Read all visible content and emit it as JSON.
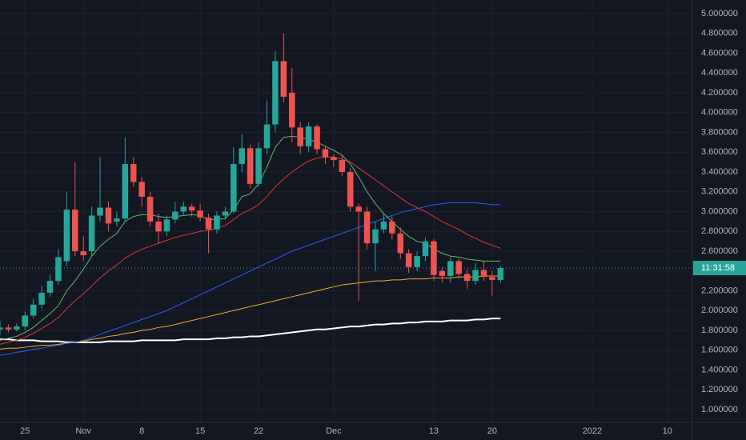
{
  "chart_data": {
    "type": "candlestick",
    "x": [
      "Oct 22",
      "Oct 23",
      "Oct 24",
      "Oct 25",
      "Oct 26",
      "Oct 27",
      "Oct 28",
      "Oct 29",
      "Oct 30",
      "Oct 31",
      "Nov 1",
      "Nov 2",
      "Nov 3",
      "Nov 4",
      "Nov 5",
      "Nov 6",
      "Nov 7",
      "Nov 8",
      "Nov 9",
      "Nov 10",
      "Nov 11",
      "Nov 12",
      "Nov 13",
      "Nov 14",
      "Nov 15",
      "Nov 16",
      "Nov 17",
      "Nov 18",
      "Nov 19",
      "Nov 20",
      "Nov 21",
      "Nov 22",
      "Nov 23",
      "Nov 24",
      "Nov 25",
      "Nov 26",
      "Nov 27",
      "Nov 28",
      "Nov 29",
      "Nov 30",
      "Dec 1",
      "Dec 2",
      "Dec 3",
      "Dec 4",
      "Dec 5",
      "Dec 6",
      "Dec 7",
      "Dec 8",
      "Dec 9",
      "Dec 10",
      "Dec 11",
      "Dec 12",
      "Dec 13",
      "Dec 14",
      "Dec 15",
      "Dec 16",
      "Dec 17",
      "Dec 18",
      "Dec 19",
      "Dec 20",
      "Dec 21"
    ],
    "open": [
      1.81,
      1.83,
      1.81,
      1.84,
      1.95,
      2.06,
      2.18,
      2.3,
      2.5,
      3.02,
      2.6,
      2.6,
      2.96,
      3.04,
      2.9,
      2.93,
      3.48,
      3.3,
      3.15,
      2.9,
      2.8,
      2.92,
      3.0,
      3.05,
      3.01,
      2.94,
      2.82,
      2.96,
      3.0,
      3.48,
      3.64,
      3.28,
      3.64,
      3.88,
      4.52,
      4.2,
      3.85,
      3.66,
      3.86,
      3.63,
      3.55,
      3.52,
      3.4,
      3.05,
      3.0,
      2.68,
      2.82,
      2.9,
      2.78,
      2.58,
      2.44,
      2.55,
      2.7,
      2.4,
      2.35,
      2.5,
      2.37,
      2.3,
      2.41,
      2.34,
      2.31
    ],
    "high": [
      1.9,
      1.86,
      1.87,
      1.99,
      2.12,
      2.25,
      2.36,
      2.62,
      3.2,
      3.5,
      2.75,
      3.05,
      3.55,
      3.1,
      3.0,
      3.75,
      3.55,
      3.35,
      3.2,
      2.98,
      2.96,
      3.1,
      3.1,
      3.08,
      3.08,
      2.98,
      3.0,
      3.05,
      3.65,
      3.78,
      3.68,
      3.7,
      4.12,
      4.62,
      4.8,
      4.45,
      3.9,
      3.9,
      3.88,
      3.66,
      3.58,
      3.56,
      3.44,
      3.08,
      3.05,
      2.9,
      2.98,
      2.95,
      2.84,
      2.62,
      2.6,
      2.74,
      2.72,
      2.44,
      2.54,
      2.52,
      2.42,
      2.48,
      2.5,
      2.4,
      2.45
    ],
    "low": [
      1.75,
      1.78,
      1.79,
      1.8,
      1.92,
      2.02,
      2.14,
      2.26,
      2.45,
      2.55,
      2.5,
      2.55,
      2.9,
      2.8,
      2.85,
      2.9,
      3.25,
      3.05,
      2.85,
      2.68,
      2.75,
      2.88,
      2.96,
      2.95,
      2.9,
      2.58,
      2.78,
      2.92,
      2.98,
      3.4,
      3.24,
      3.25,
      3.58,
      3.8,
      4.1,
      3.7,
      3.58,
      3.6,
      3.58,
      3.48,
      3.45,
      3.36,
      3.0,
      2.1,
      2.62,
      2.4,
      2.78,
      2.72,
      2.52,
      2.38,
      2.4,
      2.5,
      2.3,
      2.28,
      2.28,
      2.32,
      2.22,
      2.26,
      2.3,
      2.15,
      2.28
    ],
    "close": [
      1.83,
      1.81,
      1.84,
      1.95,
      2.06,
      2.18,
      2.3,
      2.54,
      3.02,
      2.6,
      2.56,
      2.96,
      3.04,
      2.88,
      2.93,
      3.48,
      3.3,
      3.15,
      2.9,
      2.8,
      2.92,
      3.0,
      3.05,
      3.01,
      2.94,
      2.82,
      2.96,
      3.0,
      3.48,
      3.64,
      3.28,
      3.64,
      3.88,
      4.52,
      4.16,
      3.85,
      3.66,
      3.86,
      3.63,
      3.55,
      3.52,
      3.4,
      3.05,
      3.0,
      2.68,
      2.82,
      2.9,
      2.78,
      2.58,
      2.44,
      2.55,
      2.7,
      2.36,
      2.35,
      2.5,
      2.37,
      2.3,
      2.41,
      2.34,
      2.31,
      2.43
    ],
    "up_color": "#26a69a",
    "down_color": "#ef5350",
    "series": [
      {
        "color": "#ffffff",
        "width": 2,
        "values": [
          1.71,
          1.71,
          1.7,
          1.7,
          1.7,
          1.69,
          1.69,
          1.69,
          1.68,
          1.68,
          1.68,
          1.68,
          1.68,
          1.69,
          1.69,
          1.69,
          1.69,
          1.7,
          1.7,
          1.7,
          1.7,
          1.7,
          1.71,
          1.71,
          1.71,
          1.71,
          1.72,
          1.72,
          1.73,
          1.73,
          1.74,
          1.74,
          1.75,
          1.76,
          1.77,
          1.78,
          1.79,
          1.8,
          1.81,
          1.81,
          1.82,
          1.83,
          1.84,
          1.84,
          1.85,
          1.86,
          1.86,
          1.87,
          1.87,
          1.88,
          1.88,
          1.89,
          1.89,
          1.89,
          1.9,
          1.9,
          1.9,
          1.91,
          1.91,
          1.92,
          1.92
        ]
      },
      {
        "color": "#f0a830",
        "width": 1,
        "values": [
          1.61,
          1.62,
          1.62,
          1.63,
          1.64,
          1.65,
          1.65,
          1.66,
          1.67,
          1.68,
          1.69,
          1.71,
          1.72,
          1.74,
          1.75,
          1.77,
          1.78,
          1.8,
          1.81,
          1.83,
          1.84,
          1.86,
          1.88,
          1.9,
          1.92,
          1.94,
          1.96,
          1.98,
          2.0,
          2.02,
          2.04,
          2.06,
          2.08,
          2.1,
          2.12,
          2.14,
          2.16,
          2.18,
          2.2,
          2.22,
          2.24,
          2.26,
          2.27,
          2.28,
          2.29,
          2.3,
          2.3,
          2.31,
          2.31,
          2.32,
          2.32,
          2.32,
          2.33,
          2.33,
          2.33,
          2.34,
          2.34,
          2.34,
          2.35,
          2.35,
          2.35
        ]
      },
      {
        "color": "#2962ff",
        "width": 1,
        "values": [
          1.55,
          1.56,
          1.58,
          1.59,
          1.61,
          1.62,
          1.64,
          1.65,
          1.67,
          1.68,
          1.7,
          1.73,
          1.76,
          1.79,
          1.82,
          1.85,
          1.88,
          1.91,
          1.94,
          1.97,
          2.0,
          2.04,
          2.08,
          2.12,
          2.16,
          2.2,
          2.24,
          2.28,
          2.32,
          2.36,
          2.4,
          2.44,
          2.48,
          2.52,
          2.56,
          2.6,
          2.63,
          2.66,
          2.69,
          2.72,
          2.75,
          2.78,
          2.81,
          2.84,
          2.87,
          2.9,
          2.93,
          2.96,
          2.99,
          3.01,
          3.03,
          3.05,
          3.07,
          3.08,
          3.09,
          3.09,
          3.09,
          3.09,
          3.08,
          3.07,
          3.07
        ]
      },
      {
        "color": "#e53935",
        "width": 1,
        "values": [
          1.66,
          1.68,
          1.7,
          1.73,
          1.77,
          1.82,
          1.87,
          1.93,
          2.02,
          2.1,
          2.17,
          2.25,
          2.33,
          2.4,
          2.46,
          2.53,
          2.58,
          2.62,
          2.65,
          2.68,
          2.71,
          2.74,
          2.76,
          2.78,
          2.8,
          2.81,
          2.83,
          2.86,
          2.92,
          2.98,
          3.02,
          3.07,
          3.15,
          3.25,
          3.33,
          3.4,
          3.46,
          3.51,
          3.54,
          3.55,
          3.55,
          3.53,
          3.5,
          3.44,
          3.38,
          3.32,
          3.26,
          3.2,
          3.14,
          3.08,
          3.04,
          3.0,
          2.95,
          2.9,
          2.86,
          2.82,
          2.77,
          2.73,
          2.69,
          2.66,
          2.63
        ]
      },
      {
        "color": "#66bb6a",
        "width": 1,
        "values": [
          1.7,
          1.72,
          1.74,
          1.78,
          1.83,
          1.9,
          1.97,
          2.05,
          2.2,
          2.3,
          2.42,
          2.55,
          2.65,
          2.72,
          2.78,
          2.9,
          2.95,
          2.97,
          2.97,
          2.95,
          2.94,
          2.95,
          2.96,
          2.97,
          2.96,
          2.92,
          2.92,
          2.93,
          3.02,
          3.15,
          3.18,
          3.28,
          3.45,
          3.65,
          3.75,
          3.76,
          3.75,
          3.73,
          3.7,
          3.66,
          3.62,
          3.57,
          3.48,
          3.35,
          3.2,
          3.08,
          2.98,
          2.9,
          2.82,
          2.75,
          2.7,
          2.68,
          2.62,
          2.58,
          2.55,
          2.54,
          2.52,
          2.51,
          2.5,
          2.5,
          2.5
        ]
      }
    ],
    "countdown": "11:31:58",
    "xlim": [
      "Oct 22",
      "Jan 13"
    ],
    "xticks": [
      {
        "value": "Oct 25",
        "label": "25"
      },
      {
        "value": "Nov 1",
        "label": "Nov"
      },
      {
        "value": "Nov 8",
        "label": "8"
      },
      {
        "value": "Nov 15",
        "label": "15"
      },
      {
        "value": "Nov 22",
        "label": "22"
      },
      {
        "value": "Dec 1",
        "label": "Dec"
      },
      {
        "value": "Dec 13",
        "label": "13"
      },
      {
        "value": "Dec 20",
        "label": "20"
      },
      {
        "value": "Jan 1",
        "label": "2022"
      },
      {
        "value": "Jan 10",
        "label": "10"
      }
    ],
    "ylim": [
      0.871,
      5.137
    ],
    "yticks": [
      {
        "value": 1,
        "label": "1.000000"
      },
      {
        "value": 1.2,
        "label": "1.200000"
      },
      {
        "value": 1.4,
        "label": "1.400000"
      },
      {
        "value": 1.6,
        "label": "1.600000"
      },
      {
        "value": 1.8,
        "label": "1.800000"
      },
      {
        "value": 2,
        "label": "2.000000"
      },
      {
        "value": 2.2,
        "label": "2.200000"
      },
      {
        "value": 2.4,
        "label": "2.400000"
      },
      {
        "value": 2.6,
        "label": "2.600000"
      },
      {
        "value": 2.8,
        "label": "2.800000"
      },
      {
        "value": 3,
        "label": "3.000000"
      },
      {
        "value": 3.2,
        "label": "3.200000"
      },
      {
        "value": 3.4,
        "label": "3.400000"
      },
      {
        "value": 3.6,
        "label": "3.600000"
      },
      {
        "value": 3.8,
        "label": "3.800000"
      },
      {
        "value": 4,
        "label": "4.000000"
      },
      {
        "value": 4.2,
        "label": "4.200000"
      },
      {
        "value": 4.4,
        "label": "4.400000"
      },
      {
        "value": 4.6,
        "label": "4.600000"
      },
      {
        "value": 4.8,
        "label": "4.800000"
      },
      {
        "value": 5,
        "label": "5.000000"
      }
    ],
    "grid": true
  }
}
